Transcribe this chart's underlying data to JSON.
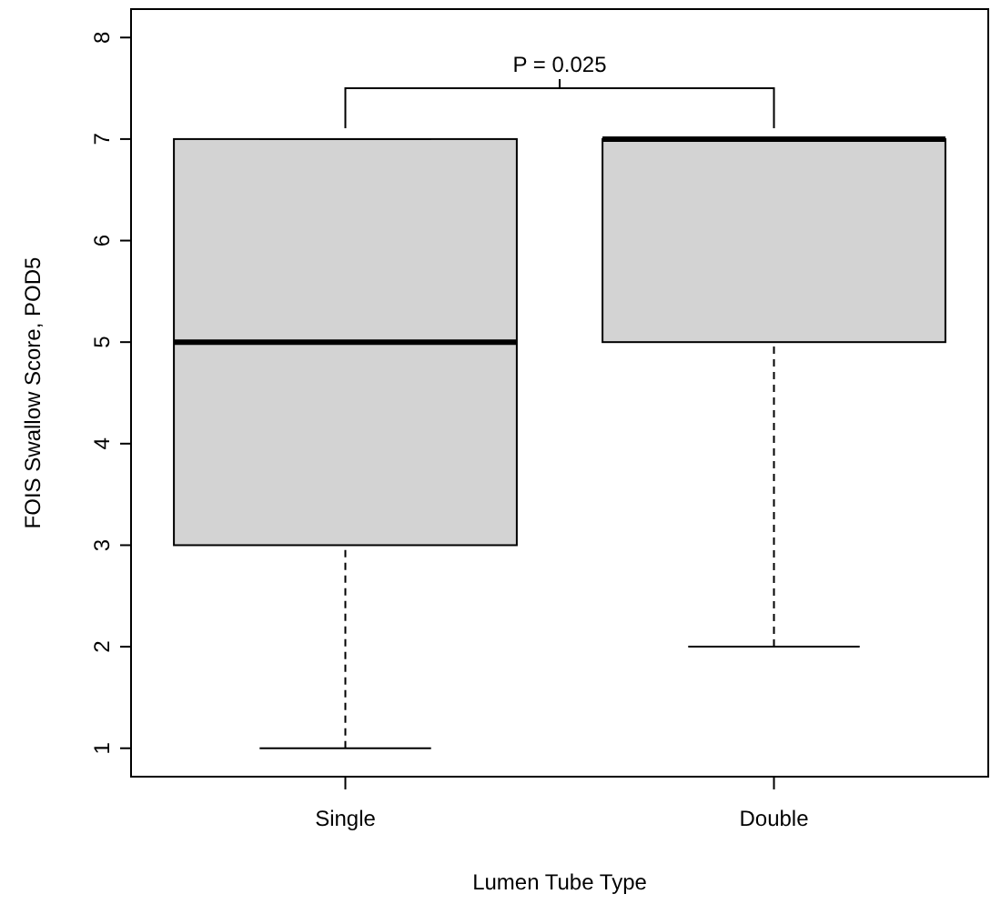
{
  "chart_data": {
    "type": "box",
    "xlabel": "Lumen Tube Type",
    "ylabel": "FOIS Swallow Score, POD5",
    "categories": [
      "Single",
      "Double"
    ],
    "boxes": [
      {
        "low": 1,
        "q1": 3,
        "median": 5,
        "q3": 7,
        "high": 7
      },
      {
        "low": 2,
        "q1": 5,
        "median": 7,
        "q3": 7,
        "high": 7
      }
    ],
    "color": "#d3d3d3",
    "ylim": [
      0.72,
      8.28
    ],
    "yticks": [
      1,
      2,
      3,
      4,
      5,
      6,
      7,
      8
    ],
    "grid": false,
    "annotations": [
      "P = 0.025"
    ]
  }
}
